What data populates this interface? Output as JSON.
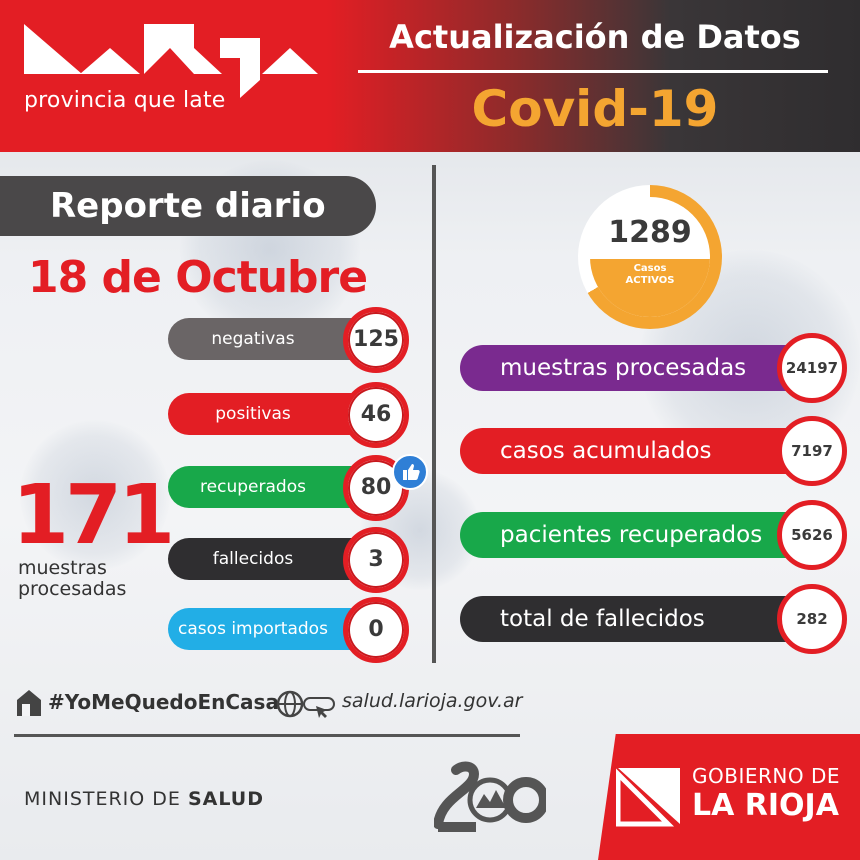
{
  "brand": {
    "tagline": "provincia que late",
    "logo_icon": "la-rioja-logo-icon"
  },
  "header": {
    "title": "Actualización de Datos",
    "subtitle": "Covid-19"
  },
  "report": {
    "title": "Reporte diario",
    "date": "18 de Octubre"
  },
  "daily": [
    {
      "label": "negativas",
      "value": "125",
      "color": "#6a6566"
    },
    {
      "label": "positivas",
      "value": "46",
      "color": "#e31e24"
    },
    {
      "label": "recuperados",
      "value": "80",
      "color": "#18a84a"
    },
    {
      "label": "fallecidos",
      "value": "3",
      "color": "#2f2e30"
    },
    {
      "label": "casos importados",
      "value": "0",
      "color": "#22aee6"
    }
  ],
  "daily_total": {
    "value": "171",
    "label": "muestras procesadas"
  },
  "active": {
    "value": "1289",
    "label_line1": "Casos",
    "label_line2": "ACTIVOS"
  },
  "cumulative": [
    {
      "label": "muestras procesadas",
      "value": "24197",
      "color": "#7a2a8f"
    },
    {
      "label": "casos acumulados",
      "value": "7197",
      "color": "#e31e24"
    },
    {
      "label": "pacientes recuperados",
      "value": "5626",
      "color": "#18a84a"
    },
    {
      "label": "total de fallecidos",
      "value": "282",
      "color": "#2f2e30"
    }
  ],
  "footer": {
    "hashtag": "#YoMeQuedoEnCasa",
    "website": "salud.larioja.gov.ar",
    "ministry_prefix": "MINISTERIO DE ",
    "ministry_bold": "SALUD",
    "gov_line1": "GOBIERNO DE",
    "gov_line2": "LA RIOJA"
  },
  "colors": {
    "brand_red": "#e31e24",
    "accent_orange": "#f4a531",
    "dark_grey": "#333333"
  }
}
